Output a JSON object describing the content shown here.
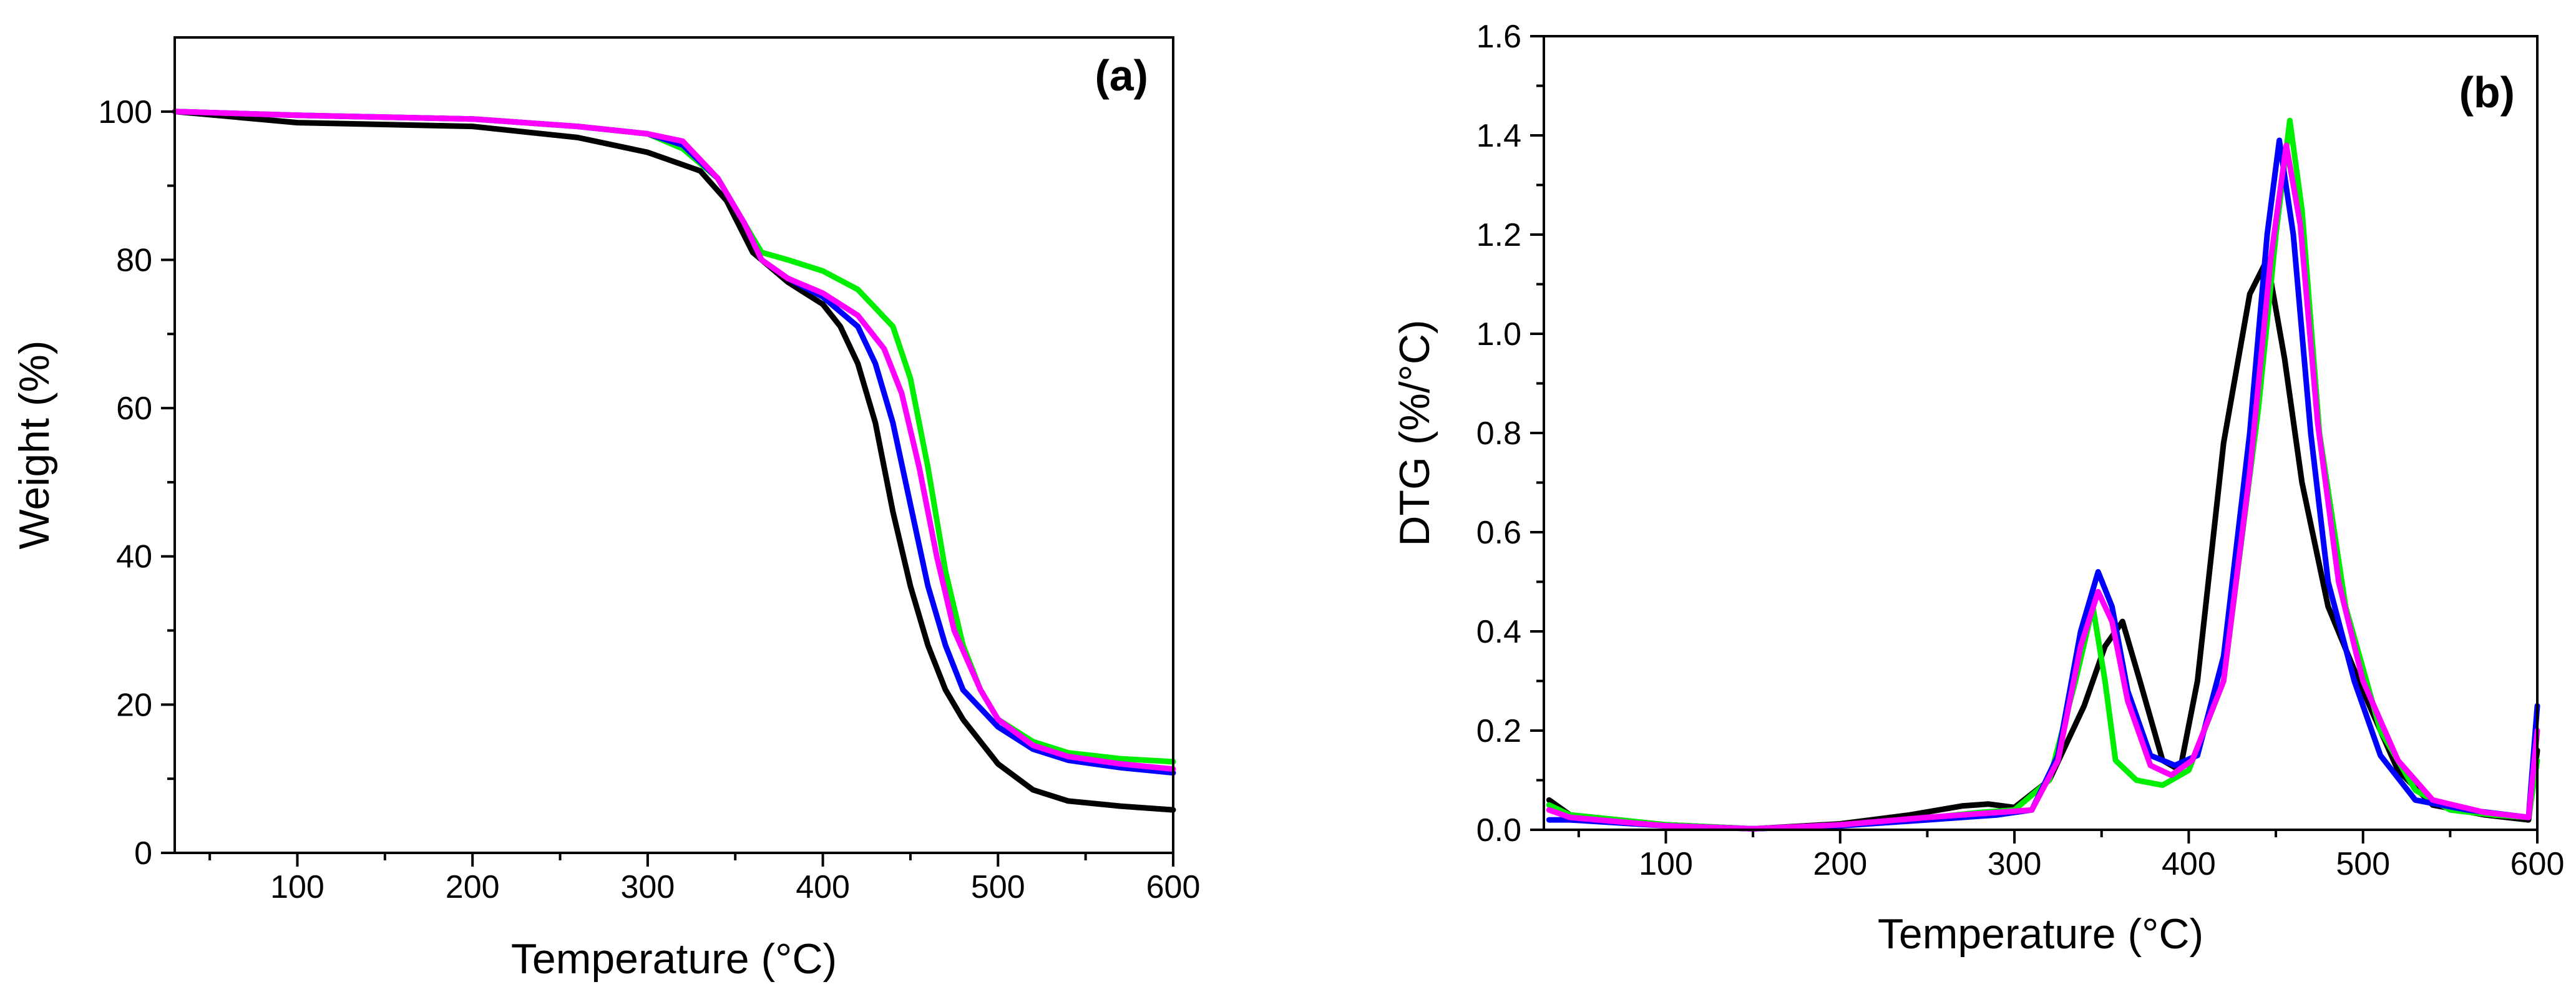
{
  "chart_data": [
    {
      "type": "line",
      "panel": "(a)",
      "xlabel": "Temperature (°C)",
      "ylabel": "Weight (%)",
      "xlim": [
        30,
        600
      ],
      "ylim": [
        0,
        110
      ],
      "xticks": [
        100,
        200,
        300,
        400,
        500,
        600
      ],
      "xtick_labels": [
        "100",
        "200",
        "300",
        "400",
        "500",
        "600"
      ],
      "yticks": [
        0,
        20,
        40,
        60,
        80,
        100
      ],
      "ytick_labels": [
        "0",
        "20",
        "40",
        "60",
        "80",
        "100"
      ],
      "series": [
        {
          "name": "black",
          "color": "#000000",
          "points": [
            [
              30,
              100
            ],
            [
              100,
              98.5
            ],
            [
              200,
              98
            ],
            [
              260,
              96.5
            ],
            [
              300,
              94.5
            ],
            [
              330,
              92
            ],
            [
              345,
              88
            ],
            [
              360,
              81
            ],
            [
              380,
              77
            ],
            [
              400,
              74
            ],
            [
              410,
              71
            ],
            [
              420,
              66
            ],
            [
              430,
              58
            ],
            [
              440,
              46
            ],
            [
              450,
              36
            ],
            [
              460,
              28
            ],
            [
              470,
              22
            ],
            [
              480,
              18
            ],
            [
              500,
              12
            ],
            [
              520,
              8.5
            ],
            [
              540,
              7
            ],
            [
              570,
              6.3
            ],
            [
              600,
              5.8
            ]
          ]
        },
        {
          "name": "green",
          "color": "#00ee00",
          "points": [
            [
              30,
              100
            ],
            [
              100,
              99.5
            ],
            [
              200,
              99
            ],
            [
              260,
              98
            ],
            [
              300,
              97
            ],
            [
              320,
              95
            ],
            [
              340,
              91
            ],
            [
              355,
              85
            ],
            [
              365,
              81
            ],
            [
              380,
              80
            ],
            [
              400,
              78.5
            ],
            [
              420,
              76
            ],
            [
              440,
              71
            ],
            [
              450,
              64
            ],
            [
              460,
              52
            ],
            [
              470,
              38
            ],
            [
              480,
              28
            ],
            [
              490,
              22
            ],
            [
              500,
              18
            ],
            [
              520,
              15
            ],
            [
              540,
              13.5
            ],
            [
              570,
              12.7
            ],
            [
              600,
              12.3
            ]
          ]
        },
        {
          "name": "blue",
          "color": "#0000ff",
          "points": [
            [
              30,
              100
            ],
            [
              100,
              99.5
            ],
            [
              200,
              99
            ],
            [
              260,
              98
            ],
            [
              300,
              97
            ],
            [
              320,
              95.5
            ],
            [
              340,
              91
            ],
            [
              355,
              85
            ],
            [
              365,
              80
            ],
            [
              380,
              77.5
            ],
            [
              400,
              75
            ],
            [
              420,
              71
            ],
            [
              430,
              66
            ],
            [
              440,
              58
            ],
            [
              450,
              47
            ],
            [
              460,
              36
            ],
            [
              470,
              28
            ],
            [
              480,
              22
            ],
            [
              500,
              17
            ],
            [
              520,
              14
            ],
            [
              540,
              12.5
            ],
            [
              570,
              11.5
            ],
            [
              600,
              10.8
            ]
          ]
        },
        {
          "name": "magenta",
          "color": "#ff00ff",
          "points": [
            [
              30,
              100
            ],
            [
              100,
              99.5
            ],
            [
              200,
              99
            ],
            [
              260,
              98
            ],
            [
              300,
              97
            ],
            [
              320,
              96
            ],
            [
              340,
              91
            ],
            [
              355,
              85
            ],
            [
              365,
              80
            ],
            [
              380,
              77.5
            ],
            [
              400,
              75.5
            ],
            [
              420,
              72.5
            ],
            [
              435,
              68
            ],
            [
              445,
              62
            ],
            [
              455,
              52
            ],
            [
              465,
              40
            ],
            [
              475,
              30
            ],
            [
              490,
              22
            ],
            [
              500,
              18
            ],
            [
              520,
              14.5
            ],
            [
              540,
              13
            ],
            [
              570,
              12
            ],
            [
              600,
              11.3
            ]
          ]
        }
      ]
    },
    {
      "type": "line",
      "panel": "(b)",
      "xlabel": "Temperature (°C)",
      "ylabel": "DTG (%/°C)",
      "xlim": [
        30,
        600
      ],
      "ylim": [
        0,
        1.6
      ],
      "xticks": [
        100,
        200,
        300,
        400,
        500,
        600
      ],
      "xtick_labels": [
        "100",
        "200",
        "300",
        "400",
        "500",
        "600"
      ],
      "yticks": [
        0,
        0.2,
        0.4,
        0.6,
        0.8,
        1.0,
        1.2,
        1.4,
        1.6
      ],
      "ytick_labels": [
        "0.0",
        "0.2",
        "0.4",
        "0.6",
        "0.8",
        "1.0",
        "1.2",
        "1.4",
        "1.6"
      ],
      "series": [
        {
          "name": "black",
          "color": "#000000",
          "points": [
            [
              33,
              0.06
            ],
            [
              45,
              0.03
            ],
            [
              100,
              0.01
            ],
            [
              150,
              0.002
            ],
            [
              200,
              0.012
            ],
            [
              240,
              0.03
            ],
            [
              270,
              0.048
            ],
            [
              285,
              0.052
            ],
            [
              300,
              0.045
            ],
            [
              320,
              0.1
            ],
            [
              340,
              0.25
            ],
            [
              352,
              0.37
            ],
            [
              362,
              0.42
            ],
            [
              372,
              0.3
            ],
            [
              385,
              0.14
            ],
            [
              395,
              0.12
            ],
            [
              405,
              0.3
            ],
            [
              420,
              0.78
            ],
            [
              435,
              1.08
            ],
            [
              445,
              1.15
            ],
            [
              455,
              0.95
            ],
            [
              465,
              0.7
            ],
            [
              480,
              0.45
            ],
            [
              500,
              0.28
            ],
            [
              520,
              0.12
            ],
            [
              540,
              0.05
            ],
            [
              570,
              0.03
            ],
            [
              595,
              0.02
            ],
            [
              600,
              0.16
            ]
          ]
        },
        {
          "name": "green",
          "color": "#00ee00",
          "points": [
            [
              33,
              0.05
            ],
            [
              45,
              0.03
            ],
            [
              100,
              0.01
            ],
            [
              150,
              0.002
            ],
            [
              200,
              0.01
            ],
            [
              240,
              0.02
            ],
            [
              280,
              0.035
            ],
            [
              300,
              0.04
            ],
            [
              320,
              0.1
            ],
            [
              335,
              0.3
            ],
            [
              345,
              0.45
            ],
            [
              352,
              0.3
            ],
            [
              358,
              0.14
            ],
            [
              370,
              0.1
            ],
            [
              385,
              0.09
            ],
            [
              400,
              0.12
            ],
            [
              420,
              0.3
            ],
            [
              440,
              0.85
            ],
            [
              450,
              1.2
            ],
            [
              458,
              1.43
            ],
            [
              465,
              1.25
            ],
            [
              475,
              0.8
            ],
            [
              490,
              0.45
            ],
            [
              510,
              0.2
            ],
            [
              530,
              0.08
            ],
            [
              550,
              0.04
            ],
            [
              575,
              0.03
            ],
            [
              595,
              0.025
            ],
            [
              600,
              0.14
            ]
          ]
        },
        {
          "name": "blue",
          "color": "#0000ff",
          "points": [
            [
              33,
              0.02
            ],
            [
              45,
              0.02
            ],
            [
              100,
              0.008
            ],
            [
              150,
              0.002
            ],
            [
              200,
              0.008
            ],
            [
              250,
              0.02
            ],
            [
              290,
              0.03
            ],
            [
              310,
              0.04
            ],
            [
              325,
              0.15
            ],
            [
              338,
              0.4
            ],
            [
              348,
              0.52
            ],
            [
              356,
              0.45
            ],
            [
              365,
              0.28
            ],
            [
              378,
              0.15
            ],
            [
              392,
              0.13
            ],
            [
              405,
              0.15
            ],
            [
              420,
              0.35
            ],
            [
              435,
              0.8
            ],
            [
              445,
              1.2
            ],
            [
              452,
              1.39
            ],
            [
              460,
              1.2
            ],
            [
              470,
              0.8
            ],
            [
              480,
              0.5
            ],
            [
              495,
              0.3
            ],
            [
              510,
              0.15
            ],
            [
              530,
              0.06
            ],
            [
              560,
              0.04
            ],
            [
              595,
              0.025
            ],
            [
              600,
              0.25
            ]
          ]
        },
        {
          "name": "magenta",
          "color": "#ff00ff",
          "points": [
            [
              33,
              0.04
            ],
            [
              45,
              0.025
            ],
            [
              100,
              0.008
            ],
            [
              150,
              0.002
            ],
            [
              200,
              0.01
            ],
            [
              250,
              0.025
            ],
            [
              290,
              0.035
            ],
            [
              310,
              0.04
            ],
            [
              325,
              0.14
            ],
            [
              338,
              0.37
            ],
            [
              348,
              0.48
            ],
            [
              356,
              0.42
            ],
            [
              365,
              0.26
            ],
            [
              378,
              0.13
            ],
            [
              390,
              0.11
            ],
            [
              402,
              0.14
            ],
            [
              420,
              0.3
            ],
            [
              435,
              0.72
            ],
            [
              447,
              1.15
            ],
            [
              456,
              1.38
            ],
            [
              464,
              1.22
            ],
            [
              474,
              0.82
            ],
            [
              486,
              0.5
            ],
            [
              500,
              0.3
            ],
            [
              520,
              0.14
            ],
            [
              540,
              0.06
            ],
            [
              570,
              0.035
            ],
            [
              595,
              0.025
            ],
            [
              600,
              0.2
            ]
          ]
        }
      ]
    }
  ]
}
